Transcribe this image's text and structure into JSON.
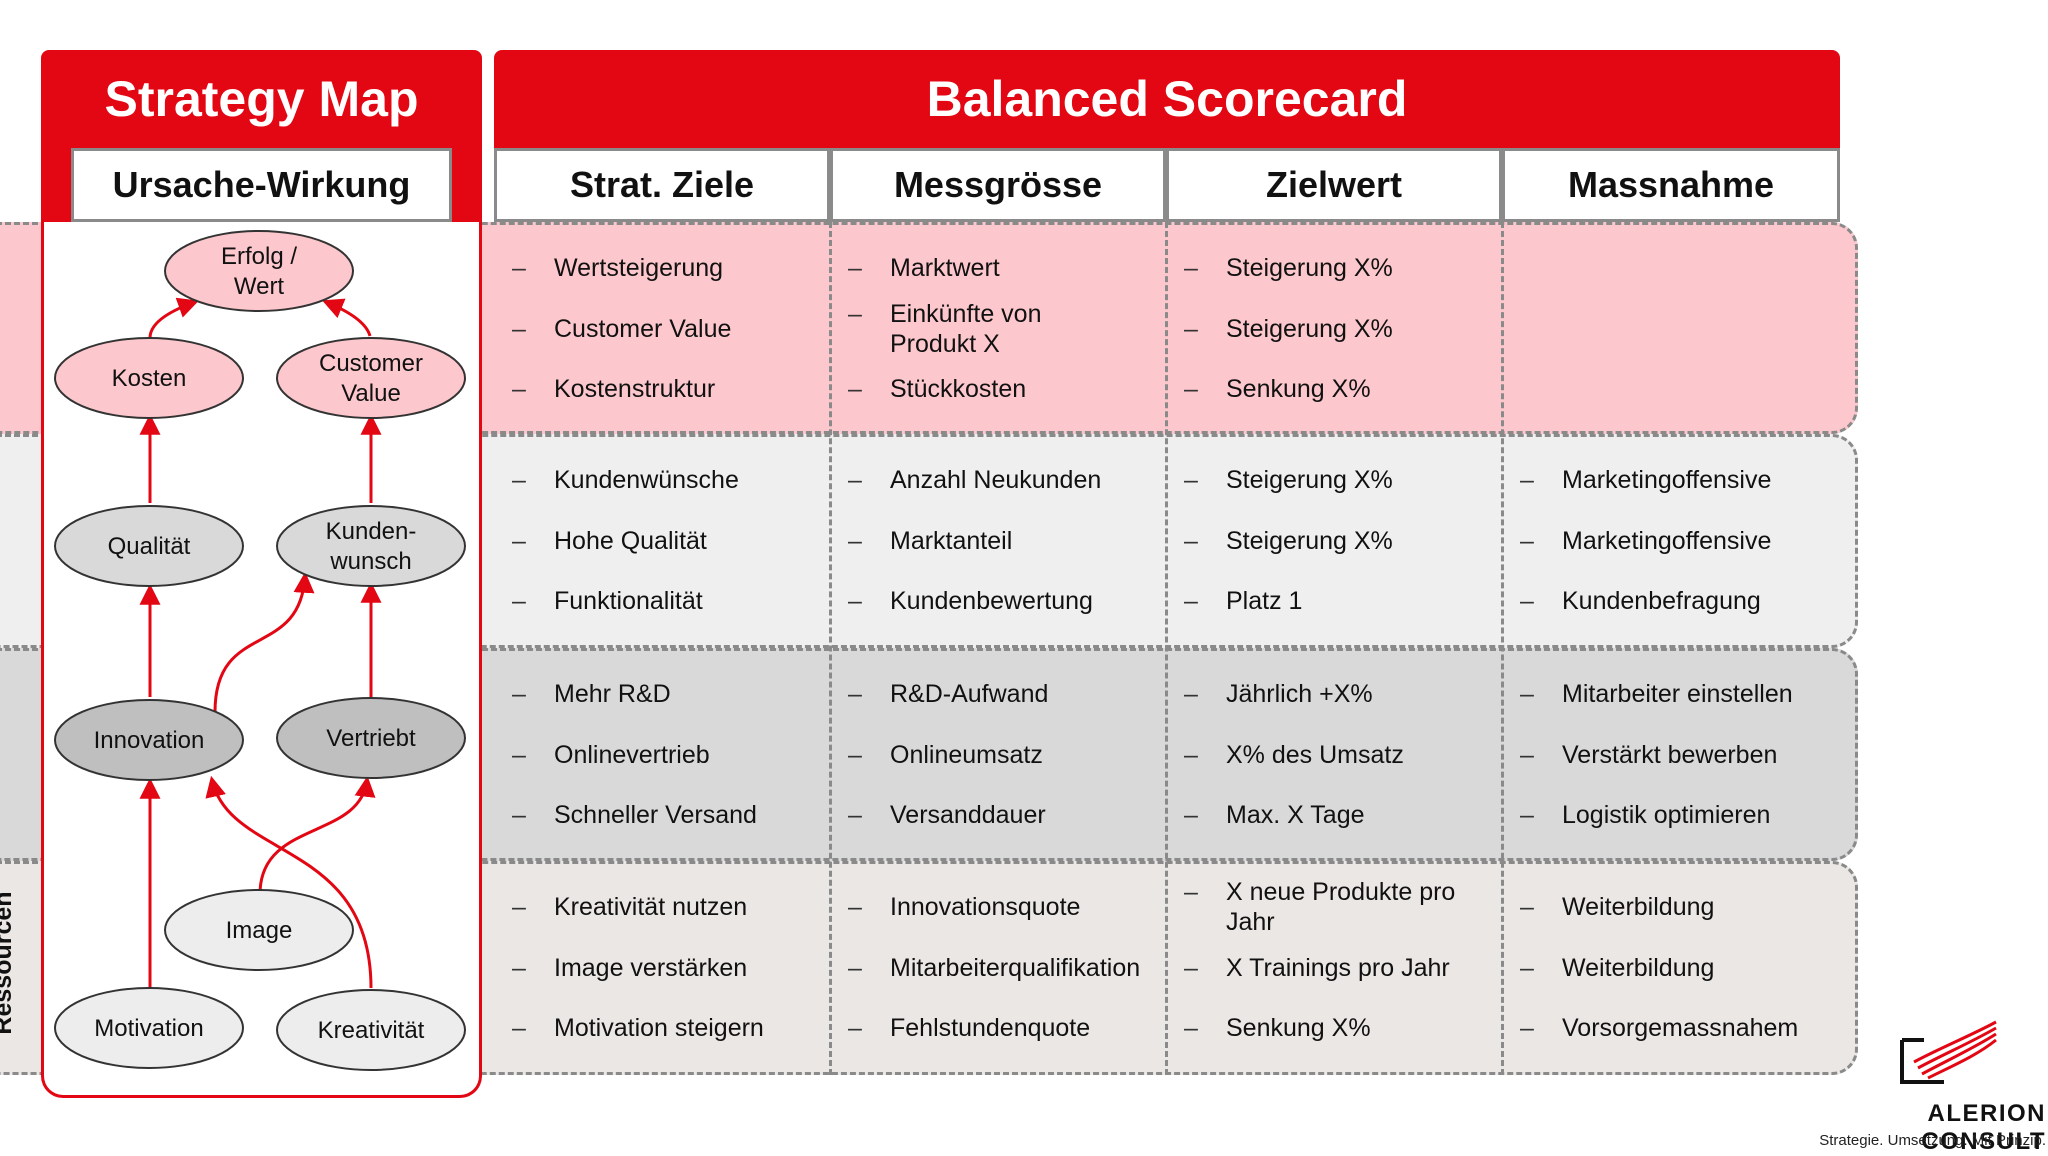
{
  "strategy_map": {
    "title": "Strategy Map",
    "subtitle": "Ursache-Wirkung",
    "nodes": {
      "erfolg": "Erfolg /\nWert",
      "kosten": "Kosten",
      "customer_value": "Customer\nValue",
      "qualitaet": "Qualität",
      "kundenwunsch": "Kunden-\nwunsch",
      "innovation": "Innovation",
      "vertriebt": "Vertriebt",
      "image": "Image",
      "motivation": "Motivation",
      "kreativitaet": "Kreativität"
    },
    "side_label_last": "Ressourcen"
  },
  "scorecard": {
    "title": "Balanced Scorecard",
    "columns": [
      "Strat. Ziele",
      "Messgrösse",
      "Zielwert",
      "Massnahme"
    ],
    "rows": [
      {
        "ziele": [
          "Wertsteigerung",
          "Customer Value",
          "Kostenstruktur"
        ],
        "messgroesse": [
          "Marktwert",
          "Einkünfte von\nProdukt X",
          "Stückkosten"
        ],
        "zielwert": [
          "Steigerung X%",
          "Steigerung X%",
          "Senkung X%"
        ],
        "massnahme": []
      },
      {
        "ziele": [
          "Kundenwünsche",
          "Hohe Qualität",
          "Funktionalität"
        ],
        "messgroesse": [
          "Anzahl Neukunden",
          "Marktanteil",
          "Kundenbewertung"
        ],
        "zielwert": [
          "Steigerung X%",
          "Steigerung X%",
          "Platz 1"
        ],
        "massnahme": [
          "Marketingoffensive",
          "Marketingoffensive",
          "Kundenbefragung"
        ]
      },
      {
        "ziele": [
          "Mehr R&D",
          "Onlinevertrieb",
          "Schneller Versand"
        ],
        "messgroesse": [
          "R&D-Aufwand",
          "Onlineumsatz",
          "Versanddauer"
        ],
        "zielwert": [
          "Jährlich +X%",
          "X% des Umsatz",
          "Max. X Tage"
        ],
        "massnahme": [
          "Mitarbeiter einstellen",
          "Verstärkt bewerben",
          "Logistik optimieren"
        ]
      },
      {
        "ziele": [
          "Kreativität nutzen",
          "Image verstärken",
          "Motivation steigern"
        ],
        "messgroesse": [
          "Innovationsquote",
          "Mitarbeiterqualifikation",
          "Fehlstundenquote"
        ],
        "zielwert": [
          "X neue Produkte pro\nJahr",
          "X Trainings pro Jahr",
          "Senkung X%"
        ],
        "massnahme": [
          "Weiterbildung",
          "Weiterbildung",
          "Vorsorgemassnahem"
        ]
      }
    ],
    "dash_char": "–"
  },
  "logo": {
    "name": "ALERION CONSULT",
    "tagline": "Strategie. Umsetzung. Mit Prinzip."
  },
  "colors": {
    "accent": "#e30613",
    "row1": "#fdc8cd",
    "row2": "#efefef",
    "row3": "#d9d9d9",
    "row4": "#ebe7e5",
    "ellipse1": "#fdc8cd",
    "ellipse2": "#d9d9d9",
    "ellipse3": "#bfbfbf",
    "ellipse4": "#ededed"
  }
}
